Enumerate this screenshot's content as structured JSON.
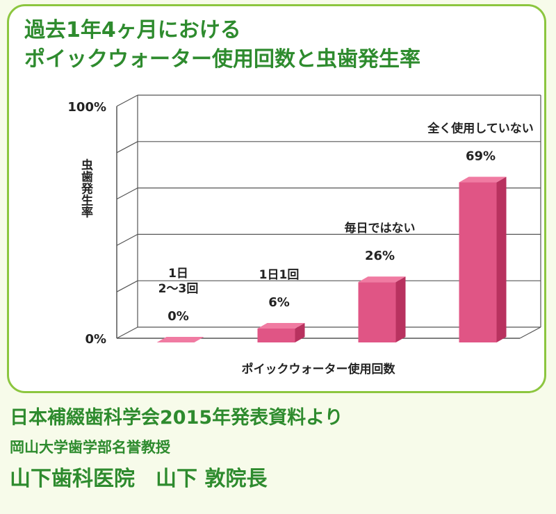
{
  "title_lines": [
    "過去1年4ヶ月における",
    "ポイックウォーター使用回数と虫歯発生率"
  ],
  "credits": {
    "source": "日本補綴歯科学会2015年発表資料より",
    "affiliation": "岡山大学歯学部名誉教授",
    "clinic": "山下歯科医院　山下 敦院長"
  },
  "colors": {
    "accent": "#2e8b2e",
    "frame": "#8cc63f",
    "bar": "#e05585"
  },
  "chart_data": {
    "type": "bar",
    "title": "過去1年4ヶ月における ポイックウォーター使用回数と虫歯発生率",
    "xlabel": "ポイックウォーター使用回数",
    "ylabel": "虫歯発生率",
    "ylim": [
      0,
      100
    ],
    "yticks": [
      "0%",
      "100%"
    ],
    "grid": true,
    "categories": [
      [
        "1日",
        "2〜3回"
      ],
      [
        "1日1回"
      ],
      [
        "毎日ではない"
      ],
      [
        "全く使用していない"
      ]
    ],
    "values": [
      0,
      6,
      26,
      69
    ],
    "value_labels": [
      "0%",
      "6%",
      "26%",
      "69%"
    ]
  }
}
